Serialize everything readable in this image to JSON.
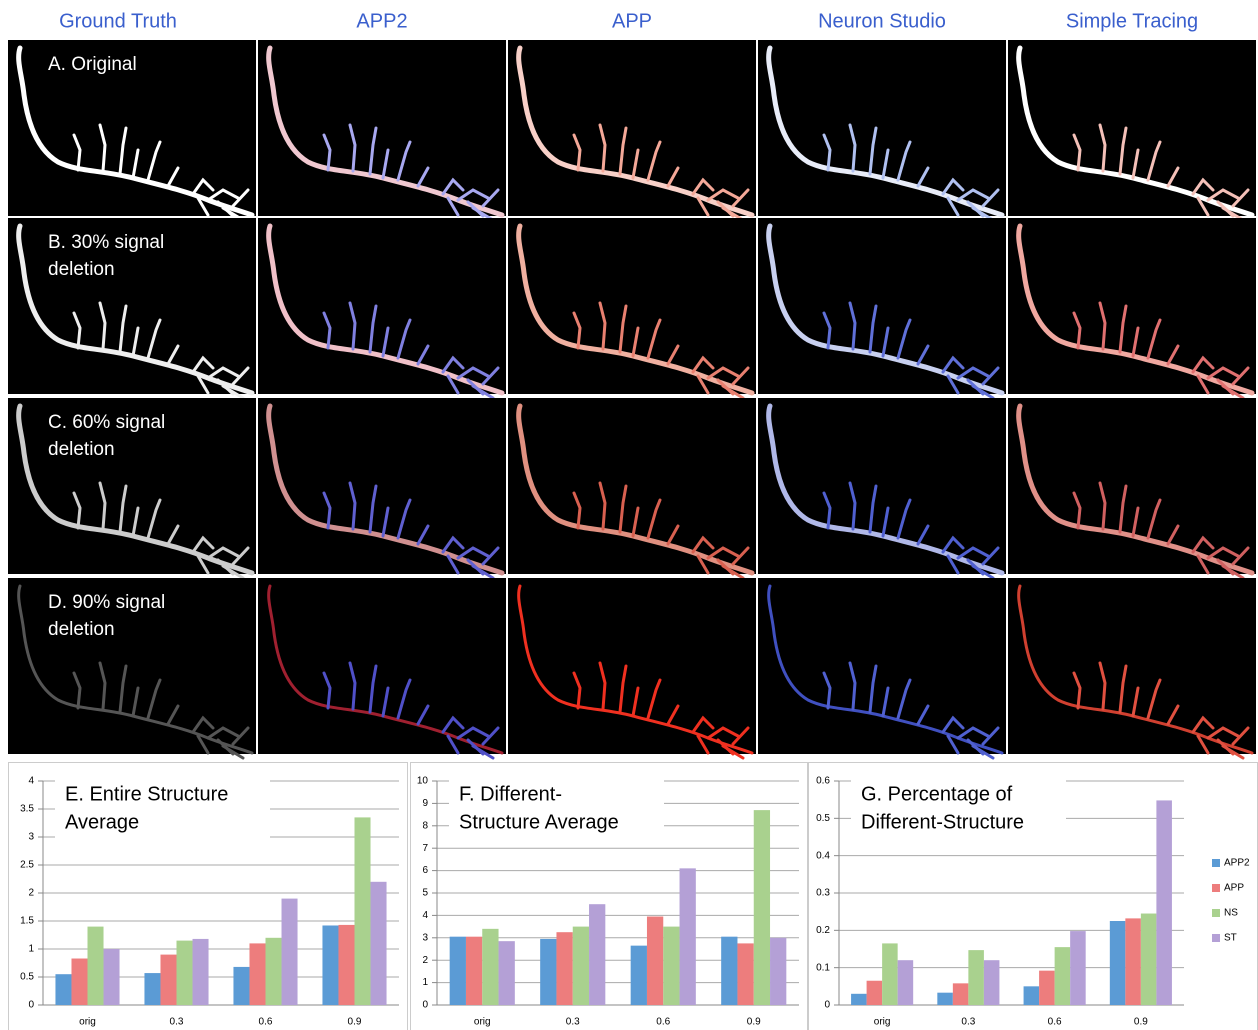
{
  "columns": [
    "Ground Truth",
    "APP2",
    "APP",
    "Neuron Studio",
    "Simple Tracing"
  ],
  "rows": [
    [
      "A. Original"
    ],
    [
      "B. 30% signal",
      "deletion"
    ],
    [
      "C. 60% signal",
      "deletion"
    ],
    [
      "D. 90% signal",
      "deletion"
    ]
  ],
  "chart_data": [
    {
      "type": "bar",
      "title": [
        "E. Entire Structure",
        "Average"
      ],
      "categories": [
        "orig",
        "0.3",
        "0.6",
        "0.9"
      ],
      "series": [
        {
          "color": "#5b9bd5",
          "values": [
            0.55,
            0.57,
            0.68,
            1.42
          ]
        },
        {
          "color": "#ed7d7d",
          "values": [
            0.83,
            0.9,
            1.1,
            1.43
          ]
        },
        {
          "color": "#a9d18e",
          "values": [
            1.4,
            1.15,
            1.2,
            3.35
          ]
        },
        {
          "color": "#b4a0d6",
          "values": [
            1.0,
            1.18,
            1.9,
            2.2
          ]
        }
      ],
      "ylim": [
        0,
        4
      ],
      "yticks": [
        0,
        0.5,
        1,
        1.5,
        2,
        2.5,
        3,
        3.5,
        4
      ],
      "grid": true
    },
    {
      "type": "bar",
      "title": [
        "F. Different-",
        "Structure Average"
      ],
      "categories": [
        "orig",
        "0.3",
        "0.6",
        "0.9"
      ],
      "series": [
        {
          "color": "#5b9bd5",
          "values": [
            3.05,
            2.95,
            2.65,
            3.05
          ]
        },
        {
          "color": "#ed7d7d",
          "values": [
            3.05,
            3.25,
            3.95,
            2.75
          ]
        },
        {
          "color": "#a9d18e",
          "values": [
            3.4,
            3.5,
            3.5,
            8.7
          ]
        },
        {
          "color": "#b4a0d6",
          "values": [
            2.85,
            4.5,
            6.1,
            3.0
          ]
        }
      ],
      "ylim": [
        0,
        10
      ],
      "yticks": [
        0,
        1,
        2,
        3,
        4,
        5,
        6,
        7,
        8,
        9,
        10
      ],
      "grid": true
    },
    {
      "type": "bar",
      "title": [
        "G. Percentage of",
        "Different-Structure"
      ],
      "categories": [
        "orig",
        "0.3",
        "0.6",
        "0.9"
      ],
      "series": [
        {
          "name": "APP2",
          "color": "#5b9bd5",
          "values": [
            0.03,
            0.033,
            0.05,
            0.225
          ]
        },
        {
          "name": "APP",
          "color": "#ed7d7d",
          "values": [
            0.065,
            0.058,
            0.092,
            0.232
          ]
        },
        {
          "name": "NS",
          "color": "#a9d18e",
          "values": [
            0.165,
            0.147,
            0.155,
            0.245
          ]
        },
        {
          "name": "ST",
          "color": "#b4a0d6",
          "values": [
            0.12,
            0.12,
            0.198,
            0.548
          ]
        }
      ],
      "ylim": [
        0,
        0.6
      ],
      "yticks": [
        0,
        0.1,
        0.2,
        0.3,
        0.4,
        0.5,
        0.6
      ],
      "grid": true,
      "legend": "right"
    }
  ]
}
